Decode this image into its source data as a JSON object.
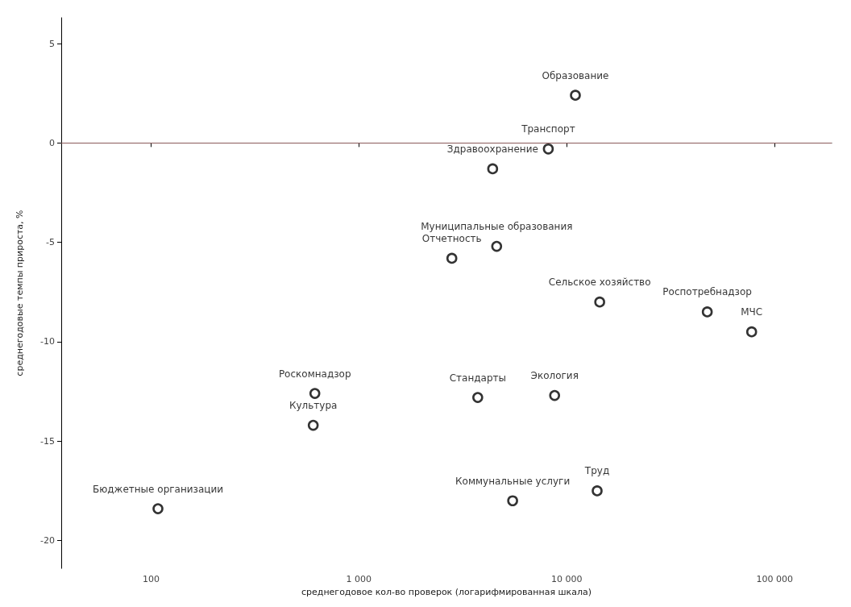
{
  "chart_data": {
    "type": "scatter",
    "xlabel": "среднегодовое кол-во проверок (логарифмированная шкала)",
    "ylabel": "среднегодовые темпы прироста, %",
    "x": [
      11000,
      8150,
      4400,
      4600,
      2800,
      14400,
      47400,
      77500,
      614,
      603,
      3730,
      8740,
      108,
      5490,
      14000
    ],
    "series": [
      {
        "color": "#000000",
        "values": [
          2.4,
          -0.3,
          -1.3,
          -5.2,
          -5.8,
          -8.0,
          -8.5,
          -9.5,
          -12.6,
          -14.2,
          -12.8,
          -12.7,
          -18.4,
          -18.0,
          -17.5
        ]
      }
    ],
    "annotations": [
      {
        "text": "Образование",
        "x": 11000,
        "y": 2.4
      },
      {
        "text": "Транспорт",
        "x": 8150,
        "y": -0.3
      },
      {
        "text": "Здравоохранение",
        "x": 4400,
        "y": -1.3
      },
      {
        "text": "Муниципальные образования",
        "x": 4600,
        "y": -5.2
      },
      {
        "text": "Отчетность",
        "x": 2800,
        "y": -5.8
      },
      {
        "text": "Сельское хозяйство",
        "x": 14400,
        "y": -8.0
      },
      {
        "text": "Роспотребнадзор",
        "x": 47400,
        "y": -8.5
      },
      {
        "text": "МЧС",
        "x": 77500,
        "y": -9.5
      },
      {
        "text": "Роскомнадзор",
        "x": 614,
        "y": -12.6
      },
      {
        "text": "Культура",
        "x": 603,
        "y": -14.2
      },
      {
        "text": "Стандарты",
        "x": 3730,
        "y": -12.8
      },
      {
        "text": "Экология",
        "x": 8740,
        "y": -12.7
      },
      {
        "text": "Бюджетные организации",
        "x": 108,
        "y": -18.4
      },
      {
        "text": "Коммунальные услуги",
        "x": 5490,
        "y": -18.0
      },
      {
        "text": "Труд",
        "x": 14000,
        "y": -17.5
      }
    ],
    "log": "x",
    "xlim": [
      37,
      188000
    ],
    "xticks": [
      100,
      {
        "value": 1000,
        "label": "1 000"
      },
      {
        "value": 10000,
        "label": "10 000"
      },
      {
        "value": 100000,
        "label": "100 000"
      }
    ],
    "ylim": [
      -21.4,
      6.3
    ],
    "yticks": [
      -20,
      -15,
      -10,
      -5,
      0,
      5
    ],
    "ref_lines": [
      {
        "axis": "y",
        "value": 0,
        "color": "#8b5a5a"
      }
    ],
    "marker": "circle",
    "grid": false
  }
}
